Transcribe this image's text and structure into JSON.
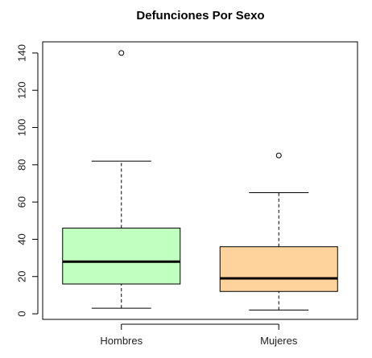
{
  "chart_data": {
    "type": "box",
    "title": "Defunciones Por Sexo",
    "xlabel": "",
    "ylabel": "",
    "categories": [
      "Hombres",
      "Mujeres"
    ],
    "ylim": [
      -3,
      146
    ],
    "yticks": [
      0,
      20,
      40,
      60,
      80,
      100,
      120,
      140
    ],
    "grid": false,
    "boxes": [
      {
        "category": "Hombres",
        "color": "#c1ffc1",
        "whisker_low": 3,
        "q1": 16,
        "median": 28,
        "q3": 46,
        "whisker_high": 82,
        "outliers": [
          140
        ]
      },
      {
        "category": "Mujeres",
        "color": "#ffd39b",
        "whisker_low": 2,
        "q1": 12,
        "median": 19,
        "q3": 36,
        "whisker_high": 65,
        "outliers": [
          85
        ]
      }
    ]
  }
}
